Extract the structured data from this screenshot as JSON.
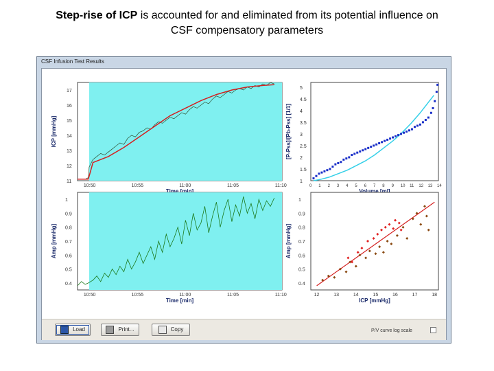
{
  "slide": {
    "title_bold_1": "Step-rise of ICP",
    "title_rest_1": " is accounted for and eliminated from its potential influence on",
    "title_line_2": "CSF compensatory parameters"
  },
  "window": {
    "title": "CSF Infusion Test Results"
  },
  "buttons": {
    "load": "Load",
    "print": "Print...",
    "copy": "Copy"
  },
  "pv_checkbox": {
    "label": "P/V curve log scale",
    "checked": false
  },
  "colors": {
    "plateau_fill": "#7ff0f0",
    "icp_raw": "#2f4f2f",
    "icp_fit": "#d42020",
    "amp_line": "#1d7a1d",
    "pv_points": "#1a2fc8",
    "pv_fit": "#35d0e8",
    "scatter_red": "#e02020",
    "scatter_brown": "#8a4a12",
    "regression": "#d42020"
  },
  "chart_data": [
    {
      "type": "line",
      "name": "icp-time-chart",
      "ylabel": "ICP [mmHg]",
      "xlabel": "Time [min]",
      "xticks": [
        "10:50",
        "10:55",
        "11:00",
        "11:05",
        "11:10"
      ],
      "yticks": [
        "11",
        "12",
        "13",
        "14",
        "15",
        "16",
        "17"
      ],
      "ylim": [
        11,
        17.5
      ],
      "series": [
        {
          "x": [
            0,
            0.5,
            1,
            1.4,
            1.5,
            1.8,
            2,
            2.5,
            3,
            3.5,
            4,
            4.5,
            5,
            5.5,
            6,
            6.5,
            7,
            7.5,
            8,
            8.5,
            9,
            9.5,
            10,
            10.5,
            11,
            11.5,
            12,
            12.5,
            13,
            13.5,
            14,
            14.5,
            15,
            15.5,
            16,
            16.5,
            17,
            17.5,
            18,
            18.5,
            19,
            19.5,
            20,
            20.5,
            21,
            21.5,
            22,
            22.5,
            23,
            23.5,
            24,
            24.5,
            25,
            25.5
          ],
          "values": [
            11.1,
            11.1,
            11.1,
            11.2,
            11.9,
            12.2,
            12.4,
            12.6,
            12.8,
            12.7,
            12.9,
            13.1,
            13.3,
            13.5,
            13.4,
            13.8,
            14.0,
            13.9,
            14.2,
            14.3,
            14.5,
            14.4,
            14.7,
            14.9,
            14.8,
            15.0,
            15.2,
            15.1,
            15.3,
            15.5,
            15.4,
            15.7,
            15.9,
            15.8,
            16.0,
            16.2,
            16.1,
            16.4,
            16.6,
            16.5,
            16.7,
            16.9,
            16.8,
            17.0,
            17.1,
            17.0,
            17.2,
            17.1,
            17.3,
            17.2,
            17.4,
            17.3,
            17.5,
            17.4
          ]
        },
        {
          "x": [
            0,
            1.4,
            2,
            4,
            6,
            8,
            10,
            12,
            14,
            16,
            18,
            20,
            22,
            24,
            25.5
          ],
          "values": [
            11.1,
            11.1,
            12.2,
            12.6,
            13.2,
            13.9,
            14.6,
            15.3,
            15.8,
            16.3,
            16.7,
            17.0,
            17.2,
            17.3,
            17.35
          ]
        }
      ]
    },
    {
      "type": "line",
      "name": "amp-time-chart",
      "ylabel": "Amp [mmHg]",
      "xlabel": "Time [min]",
      "xticks": [
        "10:50",
        "10:55",
        "11:00",
        "11:05",
        "11:10"
      ],
      "yticks": [
        "0.4",
        "0.5",
        "0.6",
        "0.7",
        "0.8",
        "0.9",
        "1"
      ],
      "ylim": [
        0.35,
        1.05
      ],
      "series": [
        {
          "x": [
            0,
            0.5,
            1,
            1.4,
            2,
            2.5,
            3,
            3.5,
            4,
            4.5,
            5,
            5.5,
            6,
            6.5,
            7,
            7.5,
            8,
            8.5,
            9,
            9.5,
            10,
            10.5,
            11,
            11.5,
            12,
            12.5,
            13,
            13.5,
            14,
            14.5,
            15,
            15.5,
            16,
            16.5,
            17,
            17.5,
            18,
            18.5,
            19,
            19.5,
            20,
            20.5,
            21,
            21.5,
            22,
            22.5,
            23,
            23.5,
            24,
            24.5,
            25,
            25.5
          ],
          "values": [
            0.38,
            0.41,
            0.39,
            0.4,
            0.42,
            0.45,
            0.41,
            0.47,
            0.44,
            0.5,
            0.46,
            0.52,
            0.48,
            0.57,
            0.5,
            0.55,
            0.62,
            0.54,
            0.6,
            0.66,
            0.57,
            0.7,
            0.62,
            0.75,
            0.66,
            0.72,
            0.8,
            0.68,
            0.85,
            0.74,
            0.9,
            0.78,
            0.83,
            0.95,
            0.76,
            0.88,
            0.98,
            0.8,
            0.92,
            1.0,
            0.84,
            0.96,
            0.88,
            1.02,
            0.9,
            0.97,
            0.86,
            1.0,
            0.92,
            0.99,
            0.95,
            1.01
          ]
        }
      ]
    },
    {
      "type": "scatter",
      "name": "pv-curve-chart",
      "ylabel": "[P-Pss]/[Pb-Pss] [1/1]",
      "xlabel": "Volume [ml]",
      "xticks": [
        "0",
        "1",
        "2",
        "3",
        "4",
        "5",
        "6",
        "7",
        "8",
        "9",
        "10",
        "11",
        "12",
        "13",
        "14"
      ],
      "yticks": [
        "1",
        "1.5",
        "2",
        "2.5",
        "3",
        "3.5",
        "4",
        "4.5",
        "5"
      ],
      "xlim": [
        0,
        14
      ],
      "ylim": [
        1,
        5.2
      ],
      "series": [
        {
          "x": [
            0.3,
            0.6,
            0.9,
            1.2,
            1.5,
            1.8,
            2.1,
            2.4,
            2.7,
            3.0,
            3.3,
            3.6,
            3.9,
            4.2,
            4.5,
            4.8,
            5.1,
            5.4,
            5.7,
            6.0,
            6.3,
            6.6,
            6.9,
            7.2,
            7.5,
            7.8,
            8.1,
            8.4,
            8.7,
            9.0,
            9.3,
            9.6,
            9.9,
            10.2,
            10.5,
            10.8,
            11.1,
            11.4,
            11.7,
            12.0,
            12.3,
            12.6,
            12.9,
            13.2,
            13.4,
            13.6,
            13.8,
            13.9
          ],
          "values": [
            1.1,
            1.2,
            1.3,
            1.35,
            1.4,
            1.45,
            1.5,
            1.6,
            1.7,
            1.75,
            1.8,
            1.9,
            1.95,
            2.0,
            2.1,
            2.15,
            2.2,
            2.25,
            2.3,
            2.35,
            2.4,
            2.45,
            2.5,
            2.55,
            2.6,
            2.65,
            2.7,
            2.75,
            2.8,
            2.85,
            2.9,
            2.95,
            3.0,
            3.05,
            3.1,
            3.15,
            3.2,
            3.3,
            3.35,
            3.4,
            3.5,
            3.6,
            3.7,
            3.9,
            4.1,
            4.4,
            4.8,
            5.1
          ]
        },
        {
          "x": [
            0.3,
            1,
            2,
            3,
            4,
            5,
            6,
            7,
            8,
            9,
            10,
            11,
            12,
            13,
            13.5
          ],
          "values": [
            1.0,
            1.05,
            1.15,
            1.3,
            1.45,
            1.65,
            1.85,
            2.1,
            2.4,
            2.7,
            3.05,
            3.45,
            3.9,
            4.4,
            4.65
          ]
        }
      ]
    },
    {
      "type": "scatter",
      "name": "amp-icp-chart",
      "ylabel": "Amp [mmHg]",
      "xlabel": "ICP [mmHg]",
      "xticks": [
        "12",
        "13",
        "14",
        "15",
        "16",
        "17",
        "18"
      ],
      "yticks": [
        "0.4",
        "0.5",
        "0.6",
        "0.7",
        "0.8",
        "0.9",
        "1"
      ],
      "xlim": [
        11.7,
        18.2
      ],
      "ylim": [
        0.35,
        1.05
      ],
      "series": [
        {
          "name": "red",
          "x": [
            13.6,
            13.8,
            14.1,
            14.3,
            14.6,
            14.9,
            15.1,
            15.3,
            15.5,
            15.7,
            15.9,
            16.0,
            16.2,
            16.3
          ],
          "values": [
            0.58,
            0.55,
            0.62,
            0.65,
            0.7,
            0.72,
            0.75,
            0.78,
            0.8,
            0.82,
            0.79,
            0.85,
            0.83,
            0.78
          ]
        },
        {
          "name": "brown",
          "x": [
            12.3,
            12.6,
            12.9,
            13.2,
            13.5,
            13.7,
            14.0,
            14.2,
            14.5,
            14.7,
            15.0,
            15.2,
            15.4,
            15.6,
            15.8,
            16.1,
            16.4,
            16.6,
            16.9,
            17.1,
            17.3,
            17.5,
            17.6,
            17.7
          ],
          "values": [
            0.42,
            0.45,
            0.44,
            0.5,
            0.48,
            0.55,
            0.52,
            0.6,
            0.58,
            0.63,
            0.61,
            0.66,
            0.62,
            0.7,
            0.68,
            0.74,
            0.8,
            0.72,
            0.86,
            0.9,
            0.82,
            0.95,
            0.88,
            0.78
          ]
        },
        {
          "name": "regression",
          "x": [
            12,
            18
          ],
          "values": [
            0.38,
            0.98
          ]
        }
      ]
    }
  ]
}
